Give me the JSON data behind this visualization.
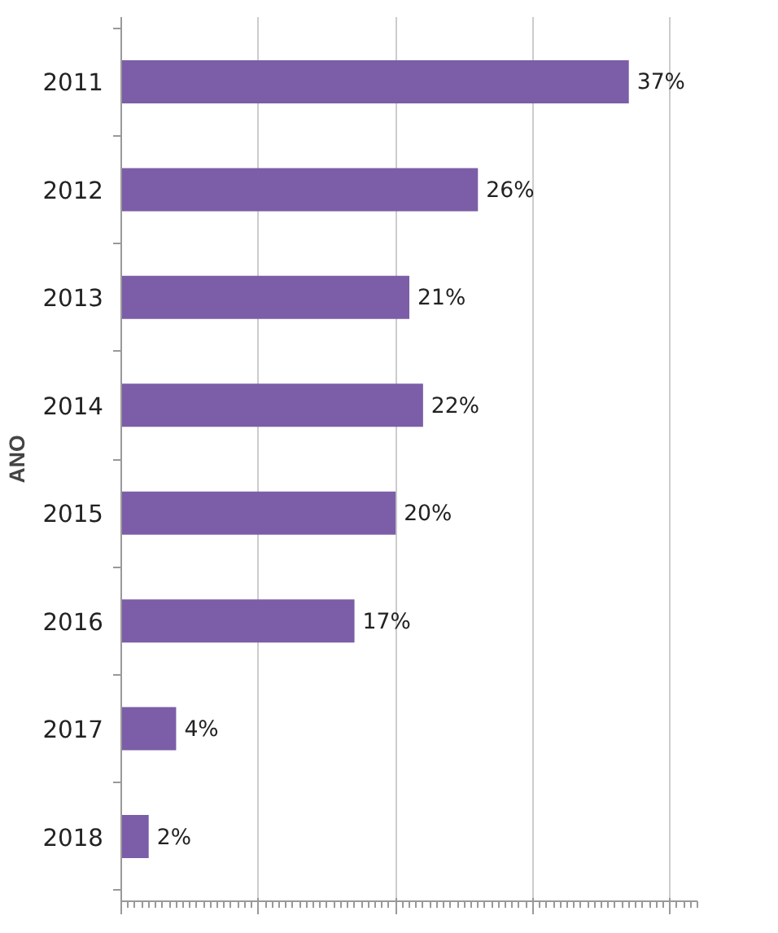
{
  "chart_data": {
    "type": "bar",
    "orientation": "horizontal",
    "ylabel": "ANO",
    "categories": [
      "2011",
      "2012",
      "2013",
      "2014",
      "2015",
      "2016",
      "2017",
      "2018"
    ],
    "values": [
      37,
      26,
      21,
      22,
      20,
      17,
      4,
      2
    ],
    "value_labels": [
      "37%",
      "26%",
      "21%",
      "22%",
      "20%",
      "17%",
      "4%",
      "2%"
    ],
    "color": "#7b5ea7",
    "xlim": [
      0,
      42
    ],
    "xticks": [
      {
        "value": 0,
        "label": null
      },
      {
        "value": 10,
        "label": null
      },
      {
        "value": 20,
        "label": null
      },
      {
        "value": 30,
        "label": null
      },
      {
        "value": 40,
        "label": null
      }
    ],
    "tick_labels": "y",
    "grid": "x"
  }
}
